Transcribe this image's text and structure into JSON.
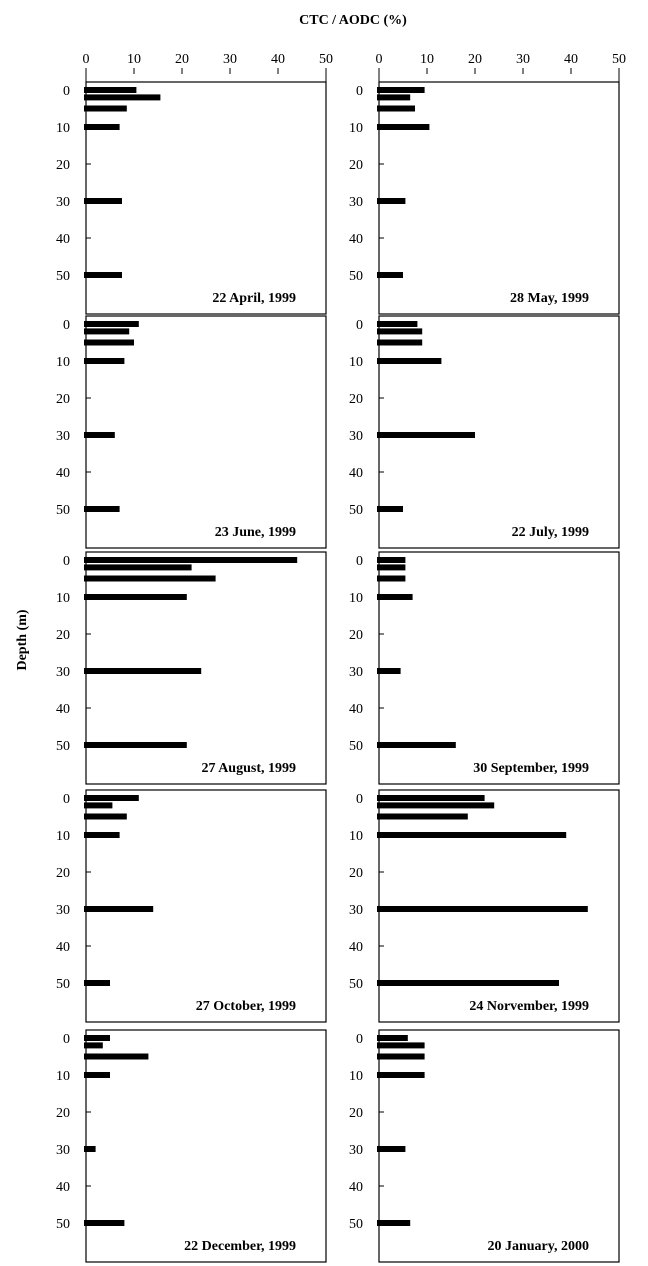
{
  "chart_data": {
    "type": "bar",
    "orientation": "horizontal",
    "title": "CTC / AODC (%)",
    "xlabel": "CTC / AODC (%)",
    "ylabel": "Depth (m)",
    "xlim": [
      0,
      50
    ],
    "xticks": [
      0,
      10,
      20,
      30,
      40,
      50
    ],
    "ylim": [
      0,
      55
    ],
    "yticks": [
      0,
      10,
      20,
      30,
      40,
      50
    ],
    "depths": [
      0,
      2,
      5,
      10,
      30,
      50
    ],
    "legend": "none",
    "grid": false,
    "panels": [
      {
        "label": "22 April, 1999",
        "values": [
          10.5,
          15.5,
          8.5,
          7,
          7.5,
          7.5
        ]
      },
      {
        "label": "28 May, 1999",
        "values": [
          9.5,
          6.5,
          7.5,
          10.5,
          5.5,
          5
        ]
      },
      {
        "label": "23 June, 1999",
        "values": [
          11,
          9,
          10,
          8,
          6,
          7
        ]
      },
      {
        "label": "22 July, 1999",
        "values": [
          8,
          9,
          9,
          13,
          20,
          5
        ]
      },
      {
        "label": "27 August, 1999",
        "values": [
          44,
          22,
          27,
          21,
          24,
          21
        ]
      },
      {
        "label": "30 September, 1999",
        "values": [
          5.5,
          5.5,
          5.5,
          7,
          4.5,
          16
        ]
      },
      {
        "label": "27 October, 1999",
        "values": [
          11,
          5.5,
          8.5,
          7,
          14,
          5
        ]
      },
      {
        "label": "24 Norvember, 1999",
        "values": [
          22,
          24,
          18.5,
          39,
          43.5,
          37.5
        ]
      },
      {
        "label": "22 December, 1999",
        "values": [
          5,
          3.5,
          13,
          5,
          2,
          8
        ]
      },
      {
        "label": "20 January, 2000",
        "values": [
          6,
          9.5,
          9.5,
          9.5,
          5.5,
          6.5
        ]
      }
    ]
  }
}
